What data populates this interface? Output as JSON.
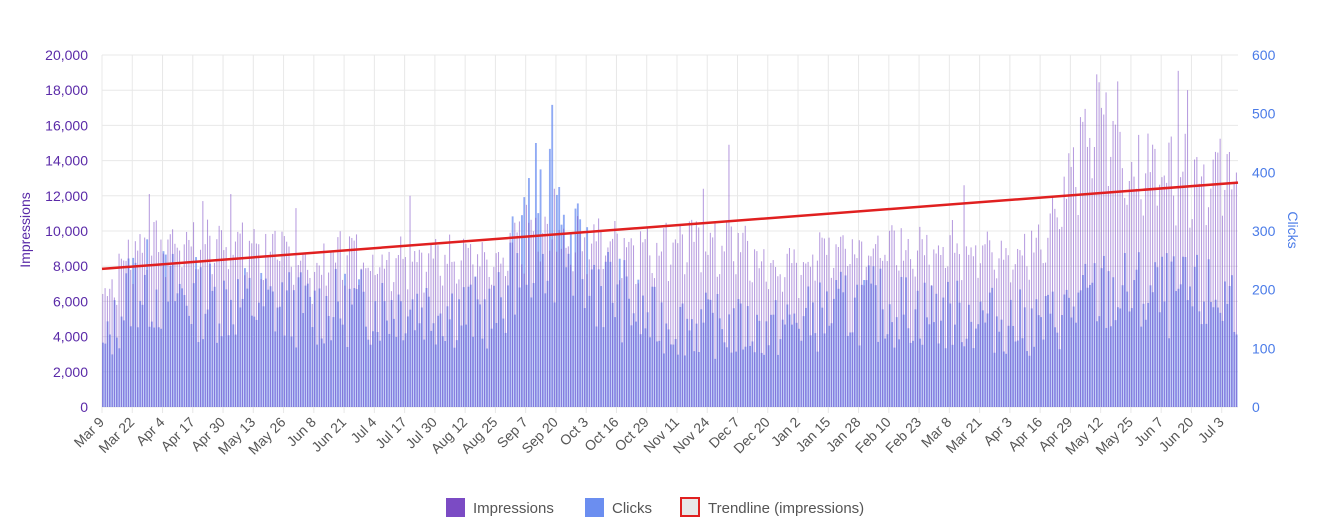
{
  "chart_data": {
    "type": "bar",
    "title": "",
    "y_left": {
      "label": "Impressions",
      "range": [
        0,
        20000
      ],
      "ticks": [
        "0",
        "2,000",
        "4,000",
        "6,000",
        "8,000",
        "10,000",
        "12,000",
        "14,000",
        "16,000",
        "18,000",
        "20,000"
      ],
      "tick_values": [
        0,
        2000,
        4000,
        6000,
        8000,
        10000,
        12000,
        14000,
        16000,
        18000,
        20000
      ]
    },
    "y_right": {
      "label": "Clicks",
      "range": [
        0,
        600
      ],
      "ticks": [
        "0",
        "100",
        "200",
        "300",
        "400",
        "500",
        "600"
      ],
      "tick_values": [
        0,
        100,
        200,
        300,
        400,
        500,
        600
      ]
    },
    "x_range": [
      "Mar 9",
      "Jul 9 (next year)"
    ],
    "x_ticks": [
      "Mar 9",
      "Mar 22",
      "Apr 4",
      "Apr 17",
      "Apr 30",
      "May 13",
      "May 26",
      "Jun 8",
      "Jun 21",
      "Jul 4",
      "Jul 17",
      "Jul 30",
      "Aug 12",
      "Aug 25",
      "Sep 7",
      "Sep 20",
      "Oct 3",
      "Oct 16",
      "Oct 29",
      "Nov 11",
      "Nov 24",
      "Dec 7",
      "Dec 20",
      "Jan 2",
      "Jan 15",
      "Jan 28",
      "Feb 10",
      "Feb 23",
      "Mar 8",
      "Mar 21",
      "Apr 3",
      "Apr 16",
      "Apr 29",
      "May 12",
      "May 25",
      "Jun 7",
      "Jun 20",
      "Jul 3"
    ],
    "days": 488,
    "grid": true,
    "legend_position": "bottom",
    "colors": {
      "impressions": "#7b4bc4",
      "clicks": "#6b8ef0",
      "trendline": "#e02020",
      "grid": "#e8e8e8",
      "left_axis": "#5a2aa8",
      "right_axis": "#4a7be8"
    },
    "series": [
      {
        "name": "Impressions",
        "axis": "left",
        "values_description_points": [
          [
            "Mar 9",
            6500
          ],
          [
            "Mar 22",
            9500
          ],
          [
            "Apr 17",
            10000
          ],
          [
            "Apr 30",
            9800
          ],
          [
            "May 13",
            9500
          ],
          [
            "May 26",
            9300
          ],
          [
            "Jun 8",
            8000
          ],
          [
            "Jun 21",
            9500
          ],
          [
            "Jul 4",
            8600
          ],
          [
            "Jul 17",
            9300
          ],
          [
            "Jul 30",
            8800
          ],
          [
            "Aug 12",
            9500
          ],
          [
            "Aug 25",
            8000
          ],
          [
            "Sep 7",
            10500
          ],
          [
            "Sep 20",
            9800
          ],
          [
            "Oct 3",
            10000
          ],
          [
            "Oct 16",
            9800
          ],
          [
            "Oct 29",
            9500
          ],
          [
            "Nov 11",
            10000
          ],
          [
            "Nov 24",
            9500
          ],
          [
            "Dec 7",
            9800
          ],
          [
            "Dec 20",
            8200
          ],
          [
            "Jan 2",
            8400
          ],
          [
            "Jan 15",
            9800
          ],
          [
            "Jan 28",
            9600
          ],
          [
            "Feb 10",
            9400
          ],
          [
            "Feb 23",
            9400
          ],
          [
            "Mar 8",
            9800
          ],
          [
            "Mar 21",
            9400
          ],
          [
            "Apr 3",
            8800
          ],
          [
            "Apr 16",
            10000
          ],
          [
            "Apr 29",
            14000
          ],
          [
            "May 12",
            17500
          ],
          [
            "May 25",
            14000
          ],
          [
            "Jun 7",
            14500
          ],
          [
            "Jun 20",
            14000
          ],
          [
            "Jul 3",
            14000
          ]
        ],
        "peaks": [
          [
            "Mar 29",
            12100
          ],
          [
            "Apr 21",
            11700
          ],
          [
            "May 3",
            12100
          ],
          [
            "May 31",
            11300
          ],
          [
            "Jul 19",
            12000
          ],
          [
            "Sep 19",
            12400
          ],
          [
            "Dec 3",
            14900
          ],
          [
            "Nov 22",
            12400
          ],
          [
            "Mar 14",
            12600
          ],
          [
            "May 10",
            18900
          ],
          [
            "May 19",
            18500
          ],
          [
            "Jun 14",
            19100
          ],
          [
            "Jun 18",
            18000
          ]
        ]
      },
      {
        "name": "Clicks",
        "axis": "right",
        "values_description_points": [
          [
            "Mar 9",
            100
          ],
          [
            "Mar 22",
            230
          ],
          [
            "Apr 17",
            200
          ],
          [
            "May 13",
            190
          ],
          [
            "Jun 8",
            180
          ],
          [
            "Jul 17",
            190
          ],
          [
            "Aug 25",
            170
          ],
          [
            "Sep 7",
            320
          ],
          [
            "Sep 20",
            300
          ],
          [
            "Oct 29",
            160
          ],
          [
            "Dec 20",
            140
          ],
          [
            "Jan 28",
            190
          ],
          [
            "Mar 8",
            170
          ],
          [
            "Apr 16",
            150
          ],
          [
            "May 12",
            210
          ],
          [
            "Jun 20",
            200
          ],
          [
            "Jul 3",
            200
          ]
        ],
        "peaks": [
          [
            "Sep 11",
            450
          ],
          [
            "Sep 13",
            405
          ],
          [
            "Sep 17",
            440
          ],
          [
            "Sep 18",
            515
          ],
          [
            "Sep 21",
            375
          ]
        ]
      },
      {
        "name": "Trendline (impressions)",
        "axis": "left",
        "type": "line",
        "start": [
          "Mar 9",
          7850
        ],
        "end": [
          "Jul 9 (next year)",
          12750
        ]
      }
    ],
    "legend": [
      "Impressions",
      "Clicks",
      "Trendline (impressions)"
    ]
  }
}
